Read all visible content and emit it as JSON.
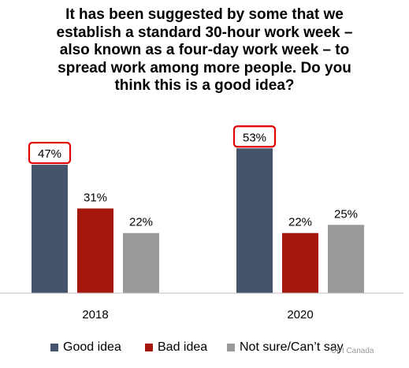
{
  "chart_data": {
    "type": "bar",
    "title_lines": [
      "It has been suggested by some that we",
      "establish a standard 30-hour work week –",
      "also known as a four-day work week –  to",
      "spread work among more people. Do you",
      "think this is a good idea?"
    ],
    "categories": [
      "2018",
      "2020"
    ],
    "series": [
      {
        "name": "Good idea",
        "color": "#44546A",
        "values": [
          47,
          53
        ],
        "labels": [
          "47%",
          "53%"
        ]
      },
      {
        "name": "Bad idea",
        "color": "#A5170C",
        "values": [
          31,
          22
        ],
        "labels": [
          "31%",
          "22%"
        ]
      },
      {
        "name": "Not sure/Can’t say",
        "color": "#999999",
        "values": [
          22,
          25
        ],
        "labels": [
          "22%",
          "25%"
        ]
      }
    ],
    "highlighted": [
      {
        "series": 0,
        "category": 0
      },
      {
        "series": 0,
        "category": 1
      }
    ],
    "highlight_color": "#E00000",
    "ylim": [
      0,
      60
    ],
    "grid": false,
    "legend_position": "bottom"
  },
  "watermark": "UPI Canada"
}
